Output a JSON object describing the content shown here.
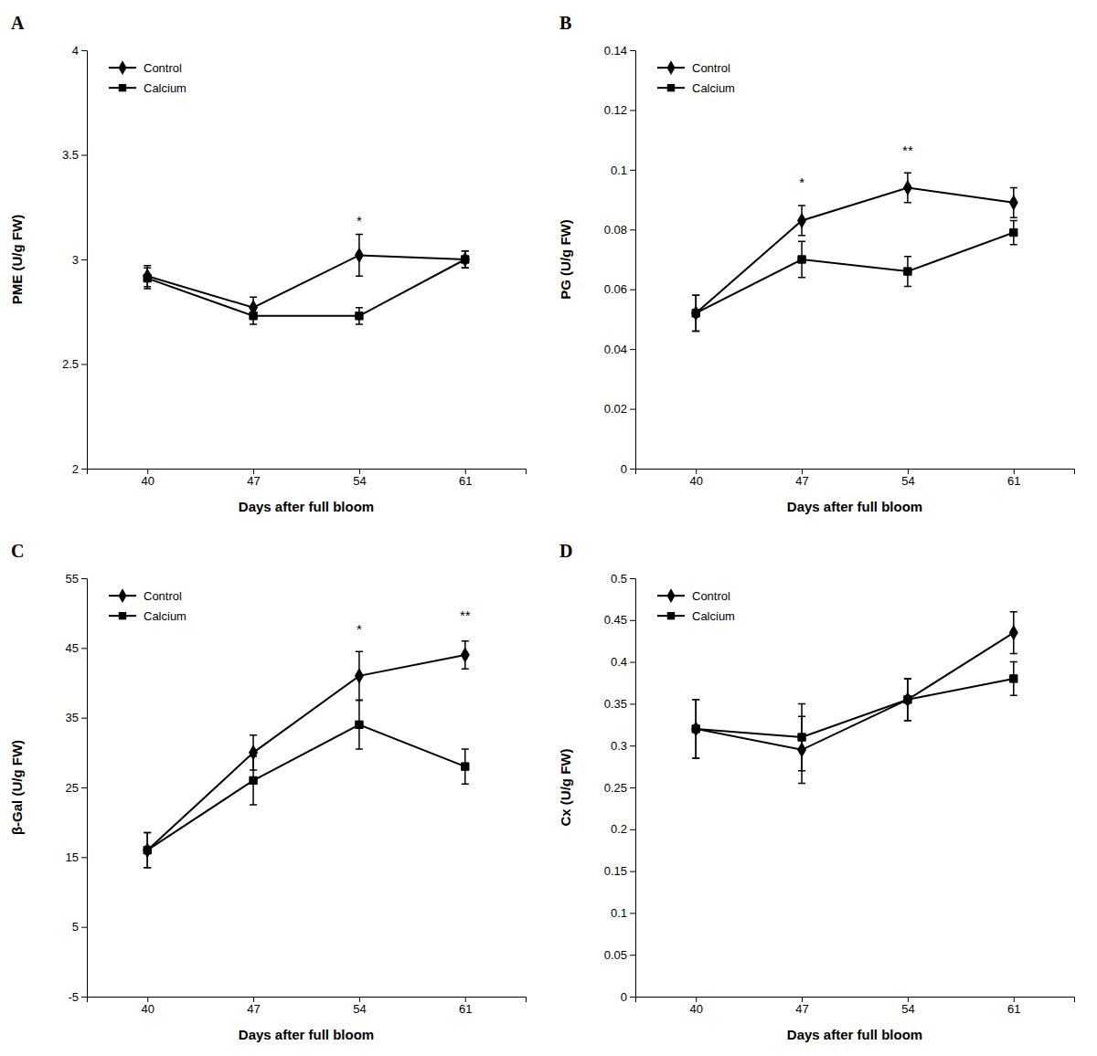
{
  "chart_data": [
    {
      "type": "line",
      "title": "A",
      "xlabel": "Days after full bloom",
      "ylabel": "PME (U/g FW)",
      "x": [
        40,
        47,
        54,
        61
      ],
      "xlim": [
        36,
        65
      ],
      "xticks": [
        40,
        47,
        54,
        61
      ],
      "ylim": [
        2.0,
        4.0
      ],
      "yticks": [
        2,
        2.5,
        3,
        3.5,
        4
      ],
      "grid": false,
      "legend": "upper left",
      "series": [
        {
          "name": "Control",
          "color": "#000000",
          "marker": "diamond",
          "values": [
            2.92,
            2.77,
            3.02,
            3.0
          ],
          "errors": [
            0.05,
            0.05,
            0.1,
            0.04
          ]
        },
        {
          "name": "Calcium",
          "color": "#000000",
          "marker": "square",
          "values": [
            2.91,
            2.73,
            2.73,
            3.0
          ],
          "errors": [
            0.05,
            0.04,
            0.04,
            0.04
          ]
        }
      ],
      "annotations": [
        {
          "x": 54,
          "y": 3.16,
          "text": "*"
        }
      ]
    },
    {
      "type": "line",
      "title": "B",
      "xlabel": "Days after full bloom",
      "ylabel": "PG (U/g FW)",
      "x": [
        40,
        47,
        54,
        61
      ],
      "xlim": [
        36,
        65
      ],
      "xticks": [
        40,
        47,
        54,
        61
      ],
      "ylim": [
        0,
        0.14
      ],
      "yticks": [
        0,
        0.02,
        0.04,
        0.06,
        0.08,
        0.1,
        0.12,
        0.14
      ],
      "grid": false,
      "legend": "upper left",
      "series": [
        {
          "name": "Control",
          "color": "#000000",
          "marker": "diamond",
          "values": [
            0.052,
            0.083,
            0.094,
            0.089
          ],
          "errors": [
            0.006,
            0.005,
            0.005,
            0.005
          ]
        },
        {
          "name": "Calcium",
          "color": "#000000",
          "marker": "square",
          "values": [
            0.052,
            0.07,
            0.066,
            0.079
          ],
          "errors": [
            0.006,
            0.006,
            0.005,
            0.004
          ]
        }
      ],
      "annotations": [
        {
          "x": 47,
          "y": 0.094,
          "text": "*"
        },
        {
          "x": 54,
          "y": 0.105,
          "text": "**"
        }
      ]
    },
    {
      "type": "line",
      "title": "C",
      "xlabel": "Days after full bloom",
      "ylabel": "β-Gal (U/g FW)",
      "x": [
        40,
        47,
        54,
        61
      ],
      "xlim": [
        36,
        65
      ],
      "xticks": [
        40,
        47,
        54,
        61
      ],
      "ylim": [
        -5,
        55
      ],
      "yticks": [
        -5,
        5,
        15,
        25,
        35,
        45,
        55
      ],
      "grid": false,
      "legend": "upper left",
      "series": [
        {
          "name": "Control",
          "color": "#000000",
          "marker": "diamond",
          "values": [
            16,
            30,
            41,
            44
          ],
          "errors": [
            2.5,
            2.5,
            3.5,
            2.0
          ]
        },
        {
          "name": "Calcium",
          "color": "#000000",
          "marker": "square",
          "values": [
            16,
            26,
            34,
            28
          ],
          "errors": [
            2.5,
            3.5,
            3.5,
            2.5
          ]
        }
      ],
      "annotations": [
        {
          "x": 54,
          "y": 47,
          "text": "*"
        },
        {
          "x": 61,
          "y": 49,
          "text": "**"
        }
      ]
    },
    {
      "type": "line",
      "title": "D",
      "xlabel": "Days after full bloom",
      "ylabel": "Cx (U/g FW)",
      "x": [
        40,
        47,
        54,
        61
      ],
      "xlim": [
        36,
        65
      ],
      "xticks": [
        40,
        47,
        54,
        61
      ],
      "ylim": [
        0,
        0.5
      ],
      "yticks": [
        0,
        0.05,
        0.1,
        0.15,
        0.2,
        0.25,
        0.3,
        0.35,
        0.4,
        0.45,
        0.5
      ],
      "grid": false,
      "legend": "upper left",
      "series": [
        {
          "name": "Control",
          "color": "#000000",
          "marker": "diamond",
          "values": [
            0.32,
            0.295,
            0.355,
            0.435
          ],
          "errors": [
            0.035,
            0.04,
            0.025,
            0.025
          ]
        },
        {
          "name": "Calcium",
          "color": "#000000",
          "marker": "square",
          "values": [
            0.32,
            0.31,
            0.355,
            0.38
          ],
          "errors": [
            0.035,
            0.04,
            0.025,
            0.02
          ]
        }
      ]
    }
  ]
}
